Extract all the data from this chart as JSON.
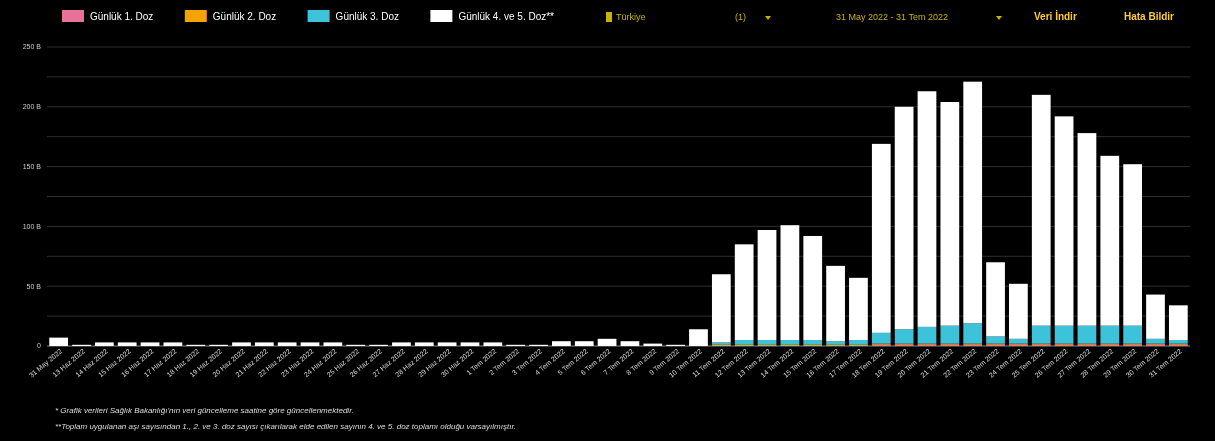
{
  "chart_data": {
    "type": "bar",
    "stacked": true,
    "categories": [
      "31 May 2022",
      "13 Haz 2022",
      "14 Haz 2022",
      "15 Haz 2022",
      "16 Haz 2022",
      "17 Haz 2022",
      "18 Haz 2022",
      "19 Haz 2022",
      "20 Haz 2022",
      "21 Haz 2022",
      "22 Haz 2022",
      "23 Haz 2022",
      "24 Haz 2022",
      "25 Haz 2022",
      "26 Haz 2022",
      "27 Haz 2022",
      "28 Haz 2022",
      "29 Haz 2022",
      "30 Haz 2022",
      "1 Tem 2022",
      "2 Tem 2022",
      "3 Tem 2022",
      "4 Tem 2022",
      "5 Tem 2022",
      "6 Tem 2022",
      "7 Tem 2022",
      "8 Tem 2022",
      "9 Tem 2022",
      "10 Tem 2022",
      "11 Tem 2022",
      "12 Tem 2022",
      "13 Tem 2022",
      "14 Tem 2022",
      "15 Tem 2022",
      "16 Tem 2022",
      "17 Tem 2022",
      "18 Tem 2022",
      "19 Tem 2022",
      "20 Tem 2022",
      "21 Tem 2022",
      "22 Tem 2022",
      "23 Tem 2022",
      "24 Tem 2022",
      "25 Tem 2022",
      "26 Tem 2022",
      "27 Tem 2022",
      "28 Tem 2022",
      "29 Tem 2022",
      "30 Tem 2022",
      "31 Tem 2022"
    ],
    "series": [
      {
        "name": "Günlük 1. Doz",
        "color": "#e8719a",
        "values": [
          0,
          0,
          0,
          0,
          0,
          0,
          0,
          0,
          0,
          0,
          0,
          0,
          0,
          0,
          0,
          0,
          0,
          0,
          0,
          0,
          0,
          0,
          0,
          0,
          0,
          0,
          0,
          0,
          0,
          0,
          0,
          0,
          0,
          0,
          0,
          0,
          1,
          1,
          1,
          1,
          1,
          1,
          1,
          1,
          1,
          1,
          1,
          1,
          1,
          1
        ]
      },
      {
        "name": "Günlük 2. Doz",
        "color": "#f5a300",
        "values": [
          0,
          0,
          0,
          0,
          0,
          0,
          0,
          0,
          0,
          0,
          0,
          0,
          0,
          0,
          0,
          0,
          0,
          0,
          0,
          0,
          0,
          0,
          0,
          0,
          0,
          0,
          0,
          0,
          0,
          1,
          1,
          1,
          1,
          1,
          1,
          1,
          1,
          1,
          1,
          1,
          1,
          1,
          1,
          1,
          1,
          1,
          1,
          1,
          1,
          1
        ]
      },
      {
        "name": "Günlük 3. Doz",
        "color": "#3cc3d9",
        "values": [
          0,
          0,
          0,
          0,
          0,
          0,
          0,
          0,
          0,
          0,
          0,
          0,
          0,
          0,
          0,
          0,
          0,
          0,
          0,
          0,
          0,
          0,
          0,
          0,
          0,
          0,
          0,
          0,
          0,
          2,
          4,
          4,
          4,
          4,
          3,
          4,
          9,
          12,
          14,
          15,
          17,
          6,
          4,
          15,
          15,
          15,
          15,
          15,
          4,
          3
        ]
      },
      {
        "name": "Günlük 4. ve 5. Doz**",
        "color": "#ffffff",
        "values": [
          7,
          1,
          3,
          3,
          3,
          3,
          1,
          1,
          3,
          3,
          3,
          3,
          3,
          1,
          1,
          3,
          3,
          3,
          3,
          3,
          1,
          1,
          4,
          4,
          6,
          4,
          2,
          1,
          14,
          57,
          80,
          92,
          96,
          87,
          63,
          52,
          158,
          186,
          197,
          187,
          202,
          62,
          46,
          193,
          175,
          161,
          142,
          135,
          37,
          29
        ]
      }
    ],
    "ylim": [
      0,
      250
    ],
    "yticks": [
      {
        "value": 0,
        "label": "0"
      },
      {
        "value": 25,
        "label": null
      },
      {
        "value": 50,
        "label": "50 B"
      },
      {
        "value": 75,
        "label": null
      },
      {
        "value": 100,
        "label": "100 B"
      },
      {
        "value": 125,
        "label": null
      },
      {
        "value": 150,
        "label": "150 B"
      },
      {
        "value": 175,
        "label": null
      },
      {
        "value": 200,
        "label": "200 B"
      },
      {
        "value": 225,
        "label": null
      },
      {
        "value": 250,
        "label": "250 B"
      }
    ],
    "grid": "y",
    "legend": "top left",
    "annotations": [
      "Türkiye",
      "(1)",
      "31 May 2022 - 31 Tem 2022",
      "Veri İndir",
      "Hata Bildir",
      "* Grafik verileri Sağlık Bakanlığı'nın veri güncelleme saatine göre güncellenmektedir.",
      "**Toplam uygulanan aşı sayısından 1., 2. ve 3. doz sayısı çıkarılarak elde edilen sayının 4. ve 5. doz toplamı olduğu varsayılmıştır."
    ]
  }
}
